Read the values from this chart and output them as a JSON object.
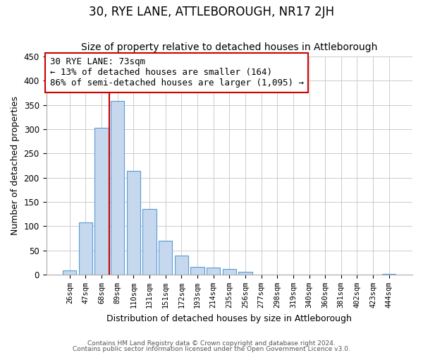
{
  "title": "30, RYE LANE, ATTLEBOROUGH, NR17 2JH",
  "subtitle": "Size of property relative to detached houses in Attleborough",
  "xlabel": "Distribution of detached houses by size in Attleborough",
  "ylabel": "Number of detached properties",
  "bar_labels": [
    "26sqm",
    "47sqm",
    "68sqm",
    "89sqm",
    "110sqm",
    "131sqm",
    "151sqm",
    "172sqm",
    "193sqm",
    "214sqm",
    "235sqm",
    "256sqm",
    "277sqm",
    "298sqm",
    "319sqm",
    "340sqm",
    "360sqm",
    "381sqm",
    "402sqm",
    "423sqm",
    "444sqm"
  ],
  "bar_values": [
    9,
    108,
    302,
    358,
    214,
    136,
    70,
    39,
    16,
    14,
    12,
    6,
    0,
    0,
    0,
    0,
    0,
    0,
    0,
    0,
    2
  ],
  "bar_color": "#c5d8ed",
  "bar_edge_color": "#5b9bd5",
  "vline_x": 2.5,
  "vline_color": "#cc0000",
  "annotation_line1": "30 RYE LANE: 73sqm",
  "annotation_line2": "← 13% of detached houses are smaller (164)",
  "annotation_line3": "86% of semi-detached houses are larger (1,095) →",
  "annotation_box_color": "#cc0000",
  "ylim": [
    0,
    450
  ],
  "yticks": [
    0,
    50,
    100,
    150,
    200,
    250,
    300,
    350,
    400,
    450
  ],
  "footer1": "Contains HM Land Registry data © Crown copyright and database right 2024.",
  "footer2": "Contains public sector information licensed under the Open Government Licence v3.0.",
  "bg_color": "#ffffff",
  "grid_color": "#cccccc",
  "title_fontsize": 12,
  "subtitle_fontsize": 10,
  "annotation_fontsize": 9
}
